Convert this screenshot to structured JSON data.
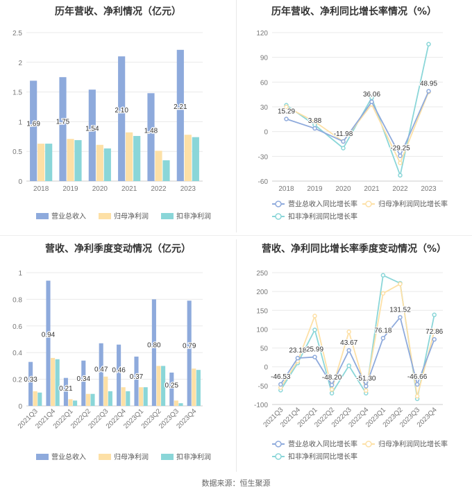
{
  "source": "数据来源：恒生聚源",
  "chart_data": [
    {
      "type": "bar",
      "title": "历年营收、净利情况（亿元）",
      "categories": [
        "2018",
        "2019",
        "2020",
        "2021",
        "2022",
        "2023"
      ],
      "series": [
        {
          "name": "营业总收入",
          "values": [
            1.69,
            1.75,
            1.54,
            2.1,
            1.48,
            2.21
          ],
          "color": "#8eaadc"
        },
        {
          "name": "归母净利润",
          "values": [
            0.63,
            0.71,
            0.61,
            0.82,
            0.51,
            0.78
          ],
          "color": "#fde0a6"
        },
        {
          "name": "扣非净利润",
          "values": [
            0.63,
            0.69,
            0.55,
            0.76,
            0.35,
            0.74
          ],
          "color": "#8ad6d8"
        }
      ],
      "data_labels": [
        "1.69",
        "1.75",
        "1.54",
        "2.10",
        "1.48",
        "2.21"
      ],
      "yticks": [
        "0",
        "0.5",
        "1",
        "1.5",
        "2",
        "2.5"
      ],
      "ylim": [
        0,
        2.5
      ],
      "grid": true,
      "legend": "bottom"
    },
    {
      "type": "line",
      "title": "历年营收、净利同比增长率情况（%）",
      "categories": [
        "2018",
        "2019",
        "2020",
        "2021",
        "2022",
        "2023"
      ],
      "series": [
        {
          "name": "营业总收入同比增长率",
          "values": [
            15.29,
            3.88,
            -11.98,
            36.06,
            -29.25,
            48.95
          ],
          "color": "#8eaadc"
        },
        {
          "name": "归母净利润同比增长率",
          "values": [
            30,
            12,
            -12,
            33,
            -38,
            48
          ],
          "color": "#fde0a6"
        },
        {
          "name": "扣非净利润同比增长率",
          "values": [
            32,
            8,
            -20,
            41,
            -53,
            106
          ],
          "color": "#8ad6d8"
        }
      ],
      "data_labels": [
        "15.29",
        "3.88",
        "-11.98",
        "36.06",
        "-29.25",
        "48.95"
      ],
      "yticks": [
        "-60",
        "-30",
        "0",
        "30",
        "60",
        "90",
        "120"
      ],
      "ylim": [
        -60,
        120
      ],
      "grid": true,
      "legend": "bottom"
    },
    {
      "type": "bar",
      "title": "营收、净利季度变动情况（亿元）",
      "categories": [
        "2021Q3",
        "2021Q4",
        "2022Q1",
        "2022Q2",
        "2022Q3",
        "2022Q4",
        "2023Q1",
        "2023Q2",
        "2023Q3",
        "2023Q4"
      ],
      "series": [
        {
          "name": "营业总收入",
          "values": [
            0.33,
            0.94,
            0.21,
            0.34,
            0.47,
            0.46,
            0.37,
            0.8,
            0.25,
            0.79
          ],
          "color": "#8eaadc"
        },
        {
          "name": "归母净利润",
          "values": [
            0.11,
            0.36,
            0.05,
            0.09,
            0.22,
            0.14,
            0.14,
            0.3,
            0.04,
            0.28
          ],
          "color": "#fde0a6"
        },
        {
          "name": "扣非净利润",
          "values": [
            0.1,
            0.35,
            0.04,
            0.09,
            0.11,
            0.11,
            0.14,
            0.3,
            0.02,
            0.27
          ],
          "color": "#8ad6d8"
        }
      ],
      "data_labels": [
        "0.33",
        "0.94",
        "0.21",
        "0.34",
        "0.47",
        "0.46",
        "0.37",
        "0.80",
        "0.25",
        "0.79"
      ],
      "yticks": [
        "0",
        "0.2",
        "0.4",
        "0.6",
        "0.8",
        "1"
      ],
      "ylim": [
        0,
        1
      ],
      "grid": true,
      "legend": "bottom"
    },
    {
      "type": "line",
      "title": "营收、净利同比增长率季度变动情况（%）",
      "categories": [
        "2021Q3",
        "2021Q4",
        "2022Q1",
        "2022Q2",
        "2022Q3",
        "2022Q4",
        "2023Q1",
        "2023Q2",
        "2023Q3",
        "2023Q4"
      ],
      "series": [
        {
          "name": "营业总收入同比增长率",
          "values": [
            -46.53,
            23.18,
            25.99,
            -48.2,
            43.67,
            -51.3,
            76.18,
            131.52,
            -46.66,
            72.86
          ],
          "color": "#8eaadc"
        },
        {
          "name": "归母净利润同比增长率",
          "values": [
            -55,
            15,
            135,
            -60,
            93,
            -63,
            195,
            220,
            -78,
            95
          ],
          "color": "#fde0a6"
        },
        {
          "name": "扣非净利润同比增长率",
          "values": [
            -62,
            10,
            98,
            -70,
            3,
            -70,
            243,
            222,
            -85,
            138
          ],
          "color": "#8ad6d8"
        }
      ],
      "data_labels": [
        "-46.53",
        "23.18",
        "25.99",
        "-48.20",
        "43.67",
        "-51.30",
        "76.18",
        "131.52",
        "-46.66",
        "72.86"
      ],
      "yticks": [
        "-100",
        "-50",
        "0",
        "50",
        "100",
        "150",
        "200",
        "250"
      ],
      "ylim": [
        -100,
        250
      ],
      "grid": true,
      "legend": "bottom"
    }
  ]
}
